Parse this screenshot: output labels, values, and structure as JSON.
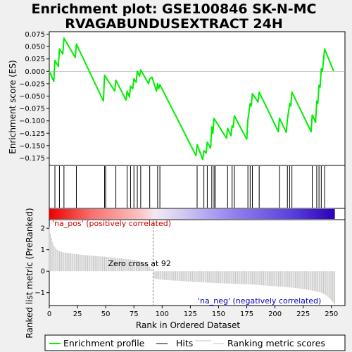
{
  "title": {
    "line1": "Enrichment plot: GSE100846 SK-N-MC",
    "line2": "RVAGABUNDUSEXTRACT 24H"
  },
  "chart_data": {
    "type": "line",
    "x_axis": {
      "label": "Rank in Ordered Dataset",
      "range": [
        0,
        262
      ],
      "ticks": [
        0,
        25,
        50,
        75,
        100,
        125,
        150,
        175,
        200,
        225,
        250
      ]
    },
    "enrichment_panel": {
      "ylabel": "Enrichment score (ES)",
      "ylim": [
        -0.19,
        0.08
      ],
      "yticks": [
        0.075,
        0.05,
        0.025,
        0.0,
        -0.025,
        -0.05,
        -0.075,
        -0.1,
        -0.125,
        -0.15,
        -0.175
      ],
      "ytick_labels": [
        "0.075",
        "0.050",
        "0.025",
        "0.000",
        "−0.025",
        "−0.050",
        "−0.075",
        "−0.100",
        "−0.125",
        "−0.150",
        "−0.175"
      ],
      "series": [
        {
          "name": "Enrichment profile",
          "color": "#00ee00",
          "points": [
            [
              0,
              0.0
            ],
            [
              4,
              -0.02
            ],
            [
              5,
              0.022
            ],
            [
              8,
              0.01
            ],
            [
              9,
              0.045
            ],
            [
              12,
              0.035
            ],
            [
              13,
              0.067
            ],
            [
              23,
              0.028
            ],
            [
              24,
              0.055
            ],
            [
              48,
              -0.06
            ],
            [
              49,
              -0.008
            ],
            [
              58,
              -0.04
            ],
            [
              59,
              -0.018
            ],
            [
              68,
              -0.058
            ],
            [
              69,
              -0.04
            ],
            [
              71,
              -0.052
            ],
            [
              72,
              -0.03
            ],
            [
              74,
              -0.035
            ],
            [
              75,
              -0.015
            ],
            [
              77,
              -0.022
            ],
            [
              78,
              0.0
            ],
            [
              80,
              -0.01
            ],
            [
              81,
              0.003
            ],
            [
              88,
              -0.025
            ],
            [
              89,
              -0.015
            ],
            [
              91,
              -0.012
            ],
            [
              95,
              -0.04
            ],
            [
              96,
              -0.025
            ],
            [
              97,
              -0.035
            ],
            [
              98,
              -0.027
            ],
            [
              130,
              -0.17
            ],
            [
              131,
              -0.148
            ],
            [
              136,
              -0.178
            ],
            [
              137,
              -0.16
            ],
            [
              139,
              -0.165
            ],
            [
              140,
              -0.143
            ],
            [
              143,
              -0.155
            ],
            [
              144,
              -0.112
            ],
            [
              145,
              -0.125
            ],
            [
              146,
              -0.095
            ],
            [
              157,
              -0.135
            ],
            [
              158,
              -0.115
            ],
            [
              161,
              -0.13
            ],
            [
              162,
              -0.11
            ],
            [
              163,
              -0.113
            ],
            [
              164,
              -0.09
            ],
            [
              175,
              -0.137
            ],
            [
              176,
              -0.098
            ],
            [
              178,
              -0.065
            ],
            [
              179,
              -0.07
            ],
            [
              180,
              -0.045
            ],
            [
              185,
              -0.062
            ],
            [
              186,
              -0.042
            ],
            [
              203,
              -0.122
            ],
            [
              204,
              -0.095
            ],
            [
              210,
              -0.123
            ],
            [
              211,
              -0.098
            ],
            [
              213,
              -0.065
            ],
            [
              214,
              -0.07
            ],
            [
              215,
              -0.042
            ],
            [
              232,
              -0.122
            ],
            [
              233,
              -0.088
            ],
            [
              236,
              -0.103
            ],
            [
              237,
              -0.06
            ],
            [
              238,
              -0.065
            ],
            [
              239,
              -0.028
            ],
            [
              240,
              -0.032
            ],
            [
              241,
              0.005
            ],
            [
              242,
              0.0
            ],
            [
              244,
              0.045
            ],
            [
              252,
              0.0
            ]
          ]
        }
      ]
    },
    "hits": {
      "name": "Hits",
      "positions": [
        5,
        9,
        13,
        24,
        49,
        50,
        59,
        69,
        72,
        75,
        78,
        81,
        89,
        96,
        98,
        131,
        137,
        140,
        144,
        146,
        147,
        158,
        162,
        164,
        176,
        178,
        180,
        186,
        204,
        211,
        213,
        215,
        233,
        237,
        239,
        241,
        244
      ]
    },
    "ranked_metric": {
      "name": "Ranking metric scores",
      "ylabel": "Ranked list metric (PreRanked)",
      "ylim": [
        -1.6,
        2.4
      ],
      "yticks": [
        2,
        1,
        0,
        -1
      ],
      "ytick_labels": [
        "2",
        "1",
        "0",
        "−1"
      ],
      "zero_cross": 92,
      "zero_cross_label": "Zero cross at 92",
      "pos_label": "'na_pos' (positively correlated)",
      "neg_label": "'na_neg' (negatively correlated)",
      "curve": [
        [
          0,
          2.05
        ],
        [
          1,
          1.75
        ],
        [
          2,
          1.55
        ],
        [
          3,
          1.35
        ],
        [
          4,
          1.2
        ],
        [
          6,
          1.05
        ],
        [
          8,
          0.95
        ],
        [
          12,
          0.88
        ],
        [
          20,
          0.82
        ],
        [
          30,
          0.76
        ],
        [
          40,
          0.71
        ],
        [
          50,
          0.67
        ],
        [
          60,
          0.61
        ],
        [
          70,
          0.56
        ],
        [
          80,
          0.47
        ],
        [
          86,
          0.35
        ],
        [
          90,
          0.15
        ],
        [
          92,
          0.0
        ],
        [
          93,
          -0.35
        ],
        [
          100,
          -0.4
        ],
        [
          120,
          -0.47
        ],
        [
          150,
          -0.56
        ],
        [
          180,
          -0.62
        ],
        [
          200,
          -0.7
        ],
        [
          220,
          -0.79
        ],
        [
          235,
          -0.92
        ],
        [
          242,
          -1.02
        ],
        [
          246,
          -1.15
        ],
        [
          250,
          -1.35
        ],
        [
          253,
          -1.55
        ]
      ]
    },
    "legend": {
      "items": [
        {
          "label": "Enrichment profile",
          "color": "#00ee00"
        },
        {
          "label": "Hits",
          "color": "#000000"
        },
        {
          "label": "Ranking metric scores",
          "color": "#c0c0c0"
        }
      ]
    },
    "colors": {
      "bar_red": "#ee0000",
      "bar_blue": "#0000cc",
      "pos_label": "#cc0000",
      "neg_label": "#0000bb",
      "zero_line": "#888888"
    }
  }
}
